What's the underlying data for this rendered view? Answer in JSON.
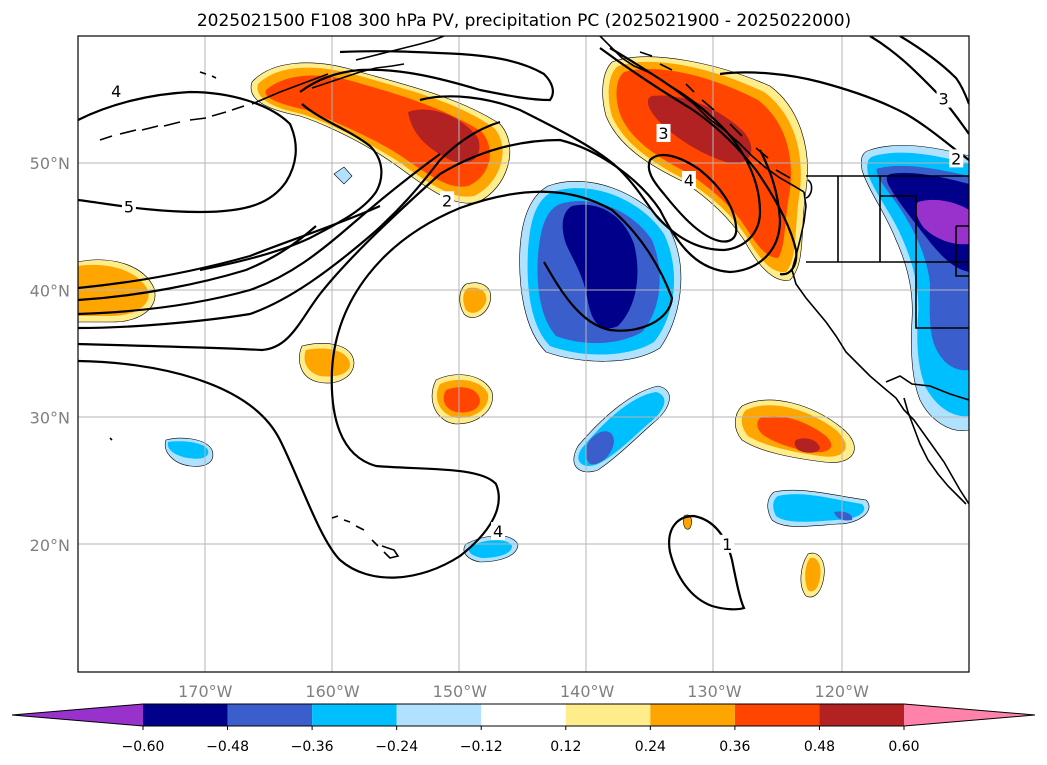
{
  "title": "2025021500 F108 300 hPa PV, precipitation PC (2025021900 - 2025022000)",
  "chart_data": {
    "type": "map",
    "extent": {
      "lon": [
        -180,
        -110
      ],
      "lat": [
        10,
        60
      ]
    },
    "grid": true,
    "lon_ticks": [
      {
        "value": -170,
        "label": "170°W"
      },
      {
        "value": -160,
        "label": "160°W"
      },
      {
        "value": -150,
        "label": "150°W"
      },
      {
        "value": -140,
        "label": "140°W"
      },
      {
        "value": -130,
        "label": "130°W"
      },
      {
        "value": -120,
        "label": "120°W"
      }
    ],
    "lat_ticks": [
      {
        "value": 50,
        "label": "50°N"
      },
      {
        "value": 40,
        "label": "40°N"
      },
      {
        "value": 30,
        "label": "30°N"
      },
      {
        "value": 20,
        "label": "20°N"
      }
    ],
    "pv_contour_labels": [
      {
        "text": "1",
        "lon": -129,
        "lat": 20.0
      },
      {
        "text": "2",
        "lon": -151,
        "lat": 47.0
      },
      {
        "text": "3",
        "lon": -134,
        "lat": 52.3
      },
      {
        "text": "4",
        "lon": -147,
        "lat": 21.0
      },
      {
        "text": "4",
        "lon": -132,
        "lat": 48.6
      },
      {
        "text": "4",
        "lon": -177,
        "lat": 55.6
      },
      {
        "text": "5",
        "lon": -176,
        "lat": 46.5
      },
      {
        "text": "3",
        "lon": -112,
        "lat": 55.0
      },
      {
        "text": "2",
        "lon": -111,
        "lat": 50.3
      }
    ],
    "colorbar": {
      "levels": [
        -0.6,
        -0.48,
        -0.36,
        -0.24,
        -0.12,
        0.12,
        0.24,
        0.36,
        0.48,
        0.6
      ],
      "tick_labels": [
        "−0.60",
        "−0.48",
        "−0.36",
        "−0.24",
        "−0.12",
        "0.12",
        "0.24",
        "0.36",
        "0.48",
        "0.60"
      ],
      "under_color": "#9932cc",
      "over_color": "#ff82ab",
      "bin_colors": [
        "#00008b",
        "#3a5fcd",
        "#00bfff",
        "#b0e2ff",
        "#ffffff",
        "#ffec8b",
        "#ffa500",
        "#ff4500",
        "#b22222"
      ]
    }
  }
}
